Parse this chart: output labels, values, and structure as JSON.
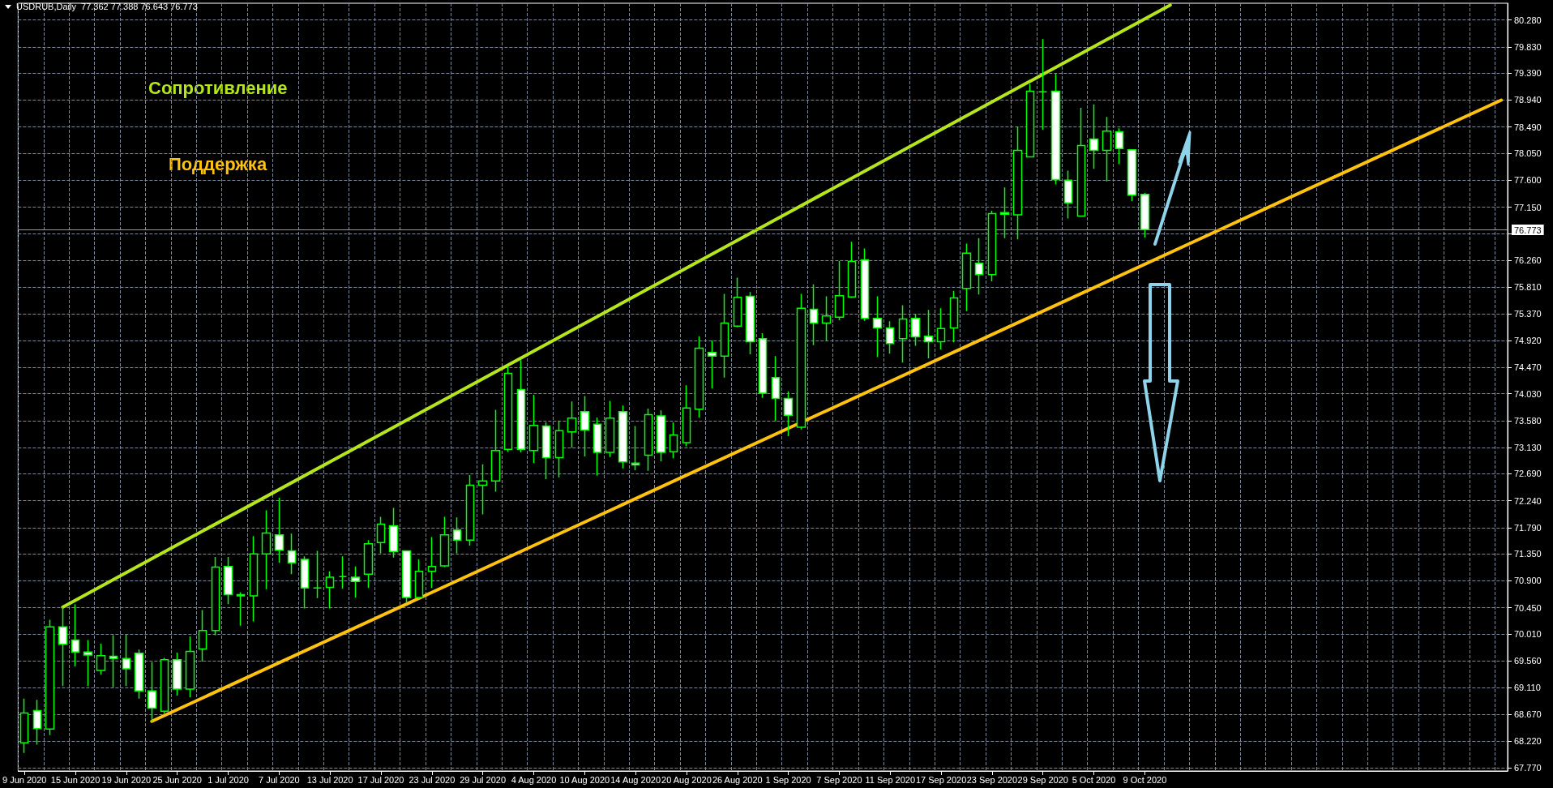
{
  "chart_data": {
    "type": "candlestick",
    "title": "USDRUB,Daily  77.362 77.388 76.643 76.773",
    "color": "#00ff00",
    "categories": [
      "9 Jun 2020",
      null,
      null,
      null,
      "15 Jun 2020",
      null,
      null,
      null,
      "19 Jun 2020",
      null,
      null,
      null,
      "25 Jun 2020",
      null,
      null,
      null,
      "1 Jul 2020",
      null,
      null,
      null,
      "7 Jul 2020",
      null,
      null,
      null,
      "13 Jul 2020",
      null,
      null,
      null,
      "17 Jul 2020",
      null,
      null,
      null,
      "23 Jul 2020",
      null,
      null,
      null,
      "29 Jul 2020",
      null,
      null,
      null,
      "4 Aug 2020",
      null,
      null,
      null,
      "10 Aug 2020",
      null,
      null,
      null,
      "14 Aug 2020",
      null,
      null,
      null,
      "20 Aug 2020",
      null,
      null,
      null,
      "26 Aug 2020",
      null,
      null,
      null,
      "1 Sep 2020",
      null,
      null,
      null,
      "7 Sep 2020",
      null,
      null,
      null,
      "11 Sep 2020",
      null,
      null,
      null,
      "17 Sep 2020",
      null,
      null,
      null,
      "23 Sep 2020",
      null,
      null,
      null,
      "29 Sep 2020",
      null,
      null,
      null,
      "5 Oct 2020",
      null,
      null,
      null,
      "9 Oct 2020",
      null,
      null,
      null,
      null,
      null,
      null,
      null,
      null,
      null,
      null,
      null,
      null,
      null,
      null,
      null,
      null,
      null,
      null,
      null,
      null,
      null,
      null,
      null,
      null,
      null,
      null,
      null,
      null
    ],
    "ohlc": [
      [
        68.19,
        68.93,
        68.02,
        68.69
      ],
      [
        68.73,
        68.91,
        68.16,
        68.43
      ],
      [
        68.42,
        70.25,
        68.32,
        70.13
      ],
      [
        70.13,
        70.46,
        69.14,
        69.84
      ],
      [
        69.91,
        70.51,
        69.47,
        69.71
      ],
      [
        69.71,
        69.91,
        69.14,
        69.66
      ],
      [
        69.4,
        69.85,
        69.33,
        69.65
      ],
      [
        69.64,
        69.99,
        69.12,
        69.6
      ],
      [
        69.6,
        70.0,
        69.14,
        69.43
      ],
      [
        69.69,
        69.75,
        68.93,
        69.06
      ],
      [
        69.06,
        69.54,
        68.54,
        68.77
      ],
      [
        68.72,
        69.61,
        68.68,
        69.58
      ],
      [
        69.58,
        69.7,
        68.98,
        69.09
      ],
      [
        69.09,
        69.97,
        68.95,
        69.72
      ],
      [
        69.76,
        70.41,
        69.55,
        70.07
      ],
      [
        70.07,
        71.3,
        69.99,
        71.13
      ],
      [
        71.14,
        71.3,
        70.51,
        70.67
      ],
      [
        70.67,
        70.71,
        70.15,
        70.65
      ],
      [
        70.65,
        71.65,
        70.22,
        71.35
      ],
      [
        71.35,
        72.08,
        70.76,
        71.7
      ],
      [
        71.67,
        72.29,
        71.2,
        71.41
      ],
      [
        71.4,
        71.69,
        71.01,
        71.2
      ],
      [
        71.26,
        71.31,
        70.44,
        70.78
      ],
      [
        70.78,
        71.4,
        70.61,
        70.78
      ],
      [
        70.79,
        71.06,
        70.44,
        70.96
      ],
      [
        70.97,
        71.31,
        70.77,
        70.97
      ],
      [
        70.96,
        71.14,
        70.62,
        70.89
      ],
      [
        71.01,
        71.58,
        70.78,
        71.52
      ],
      [
        71.54,
        71.97,
        71.36,
        71.85
      ],
      [
        71.82,
        72.12,
        71.29,
        71.39
      ],
      [
        71.4,
        71.4,
        70.53,
        70.62
      ],
      [
        70.62,
        71.26,
        70.6,
        71.06
      ],
      [
        71.06,
        71.63,
        70.78,
        71.14
      ],
      [
        71.15,
        71.97,
        71.13,
        71.67
      ],
      [
        71.75,
        71.96,
        71.36,
        71.58
      ],
      [
        71.58,
        72.67,
        71.49,
        72.5
      ],
      [
        72.5,
        72.85,
        72.01,
        72.57
      ],
      [
        72.57,
        73.76,
        72.39,
        73.08
      ],
      [
        73.1,
        74.49,
        73.06,
        74.37
      ],
      [
        74.1,
        74.59,
        73.05,
        73.1
      ],
      [
        73.08,
        74.01,
        72.87,
        73.5
      ],
      [
        73.49,
        73.55,
        72.6,
        72.96
      ],
      [
        72.96,
        73.58,
        72.63,
        73.41
      ],
      [
        73.39,
        73.9,
        73.13,
        73.62
      ],
      [
        73.73,
        73.99,
        72.98,
        73.42
      ],
      [
        73.52,
        73.63,
        72.66,
        73.05
      ],
      [
        73.05,
        73.91,
        72.97,
        73.62
      ],
      [
        73.73,
        73.83,
        72.78,
        72.89
      ],
      [
        72.87,
        73.49,
        72.75,
        72.84
      ],
      [
        73.0,
        73.78,
        72.74,
        73.68
      ],
      [
        73.66,
        73.75,
        72.9,
        73.05
      ],
      [
        73.06,
        73.55,
        72.95,
        73.34
      ],
      [
        73.21,
        74.17,
        73.15,
        73.79
      ],
      [
        73.77,
        74.99,
        73.63,
        74.79
      ],
      [
        74.72,
        74.92,
        74.12,
        74.66
      ],
      [
        74.66,
        75.7,
        74.3,
        75.21
      ],
      [
        75.16,
        75.97,
        75.14,
        75.64
      ],
      [
        75.66,
        75.73,
        74.69,
        74.9
      ],
      [
        74.95,
        75.04,
        73.96,
        74.04
      ],
      [
        74.3,
        74.66,
        73.57,
        73.95
      ],
      [
        73.95,
        74.07,
        73.32,
        73.67
      ],
      [
        73.47,
        75.7,
        73.43,
        75.46
      ],
      [
        75.44,
        75.86,
        74.84,
        75.21
      ],
      [
        75.21,
        75.66,
        74.91,
        75.33
      ],
      [
        75.31,
        76.25,
        75.26,
        75.67
      ],
      [
        75.65,
        76.57,
        75.63,
        76.24
      ],
      [
        76.27,
        76.46,
        75.25,
        75.29
      ],
      [
        75.29,
        75.66,
        74.64,
        75.13
      ],
      [
        75.13,
        75.24,
        74.7,
        74.87
      ],
      [
        74.95,
        75.51,
        74.55,
        75.28
      ],
      [
        75.29,
        75.36,
        74.83,
        74.98
      ],
      [
        74.99,
        75.43,
        74.62,
        74.9
      ],
      [
        74.9,
        75.46,
        74.77,
        75.12
      ],
      [
        75.13,
        75.75,
        74.89,
        75.63
      ],
      [
        75.79,
        76.54,
        75.41,
        76.38
      ],
      [
        76.21,
        76.63,
        75.69,
        76.02
      ],
      [
        76.02,
        77.09,
        75.91,
        77.04
      ],
      [
        77.06,
        77.48,
        76.63,
        77.03
      ],
      [
        77.02,
        78.5,
        76.61,
        78.1
      ],
      [
        77.99,
        79.21,
        77.99,
        79.09
      ],
      [
        79.08,
        79.96,
        78.44,
        79.08
      ],
      [
        79.09,
        79.38,
        77.53,
        77.61
      ],
      [
        77.6,
        77.76,
        76.96,
        77.22
      ],
      [
        77.0,
        78.81,
        76.99,
        78.18
      ],
      [
        78.29,
        78.87,
        77.79,
        78.1
      ],
      [
        78.1,
        78.66,
        77.58,
        78.42
      ],
      [
        78.41,
        78.47,
        77.87,
        78.13
      ],
      [
        78.11,
        78.11,
        77.25,
        77.35
      ],
      [
        77.362,
        77.388,
        76.643,
        76.773
      ],
      null,
      null,
      null,
      null,
      null,
      null,
      null,
      null,
      null,
      null,
      null,
      null,
      null,
      null,
      null,
      null,
      null,
      null,
      null,
      null,
      null,
      null,
      null,
      null,
      null,
      null,
      null,
      null
    ],
    "series": [
      {
        "type": "line",
        "name": "Сопротивление",
        "color": "#b5e61d",
        "values": [
          null,
          null,
          null,
          70.46,
          null,
          null,
          null,
          null,
          null,
          null,
          null,
          null,
          null,
          null,
          null,
          null,
          null,
          null,
          null,
          null,
          null,
          null,
          null,
          null,
          null,
          null,
          null,
          null,
          null,
          null,
          null,
          null,
          null,
          null,
          null,
          null,
          null,
          null,
          null,
          null,
          null,
          null,
          null,
          null,
          null,
          null,
          null,
          null,
          null,
          null,
          null,
          null,
          null,
          null,
          null,
          null,
          null,
          null,
          null,
          null,
          null,
          null,
          null,
          null,
          null,
          null,
          null,
          null,
          null,
          null,
          null,
          null,
          null,
          null,
          null,
          null,
          null,
          null,
          null,
          null,
          null,
          null,
          null,
          null,
          null,
          null,
          null,
          null,
          null,
          null,
          80.53,
          null,
          null,
          null,
          null,
          null,
          null,
          null,
          null,
          null,
          null,
          null,
          null,
          null,
          null,
          null,
          null,
          null,
          null,
          null,
          null,
          null,
          null,
          null,
          null,
          null,
          null
        ]
      },
      {
        "type": "line",
        "name": "Поддержка",
        "color": "#ffc20e",
        "values": [
          null,
          null,
          null,
          null,
          null,
          null,
          null,
          null,
          null,
          null,
          68.55,
          null,
          null,
          null,
          null,
          null,
          null,
          null,
          null,
          null,
          null,
          null,
          null,
          null,
          null,
          null,
          null,
          null,
          null,
          null,
          null,
          null,
          null,
          null,
          null,
          null,
          null,
          null,
          null,
          null,
          null,
          null,
          null,
          null,
          null,
          null,
          null,
          null,
          null,
          null,
          null,
          null,
          null,
          null,
          null,
          null,
          null,
          null,
          null,
          null,
          null,
          null,
          null,
          null,
          null,
          null,
          null,
          null,
          null,
          null,
          null,
          null,
          null,
          null,
          null,
          null,
          null,
          null,
          null,
          null,
          null,
          null,
          null,
          null,
          null,
          null,
          null,
          null,
          null,
          null,
          null,
          null,
          null,
          null,
          null,
          null,
          null,
          null,
          null,
          null,
          null,
          null,
          null,
          null,
          null,
          null,
          null,
          null,
          null,
          null,
          null,
          null,
          null,
          null,
          null,
          null,
          78.94
        ]
      }
    ],
    "ylim": [
      67.72,
      80.56
    ],
    "yticks": [
      {
        "value": 67.77,
        "label": "67.770"
      },
      {
        "value": 68.22,
        "label": "68.220"
      },
      {
        "value": 68.67,
        "label": "68.670"
      },
      {
        "value": 69.11,
        "label": "69.110"
      },
      {
        "value": 69.56,
        "label": "69.560"
      },
      {
        "value": 70.01,
        "label": "70.010"
      },
      {
        "value": 70.45,
        "label": "70.450"
      },
      {
        "value": 70.9,
        "label": "70.900"
      },
      {
        "value": 71.35,
        "label": "71.350"
      },
      {
        "value": 71.79,
        "label": "71.790"
      },
      {
        "value": 72.24,
        "label": "72.240"
      },
      {
        "value": 72.69,
        "label": "72.690"
      },
      {
        "value": 73.13,
        "label": "73.130"
      },
      {
        "value": 73.58,
        "label": "73.580"
      },
      {
        "value": 74.03,
        "label": "74.030"
      },
      {
        "value": 74.47,
        "label": "74.470"
      },
      {
        "value": 74.92,
        "label": "74.920"
      },
      {
        "value": 75.37,
        "label": "75.370"
      },
      {
        "value": 75.81,
        "label": "75.810"
      },
      {
        "value": 76.26,
        "label": "76.260"
      },
      {
        "value": 76.71,
        "label": null
      },
      {
        "value": 77.15,
        "label": "77.150"
      },
      {
        "value": 77.6,
        "label": "77.600"
      },
      {
        "value": 78.05,
        "label": "78.050"
      },
      {
        "value": 78.49,
        "label": "78.490"
      },
      {
        "value": 78.94,
        "label": "78.940"
      },
      {
        "value": 79.39,
        "label": "79.390"
      },
      {
        "value": 79.83,
        "label": "79.830"
      },
      {
        "value": 80.28,
        "label": "80.280"
      }
    ],
    "ref_lines": [
      {
        "axis": "y",
        "value": 76.773,
        "label": "76.773",
        "color": "#9a9a9a"
      }
    ],
    "grid": true
  }
}
